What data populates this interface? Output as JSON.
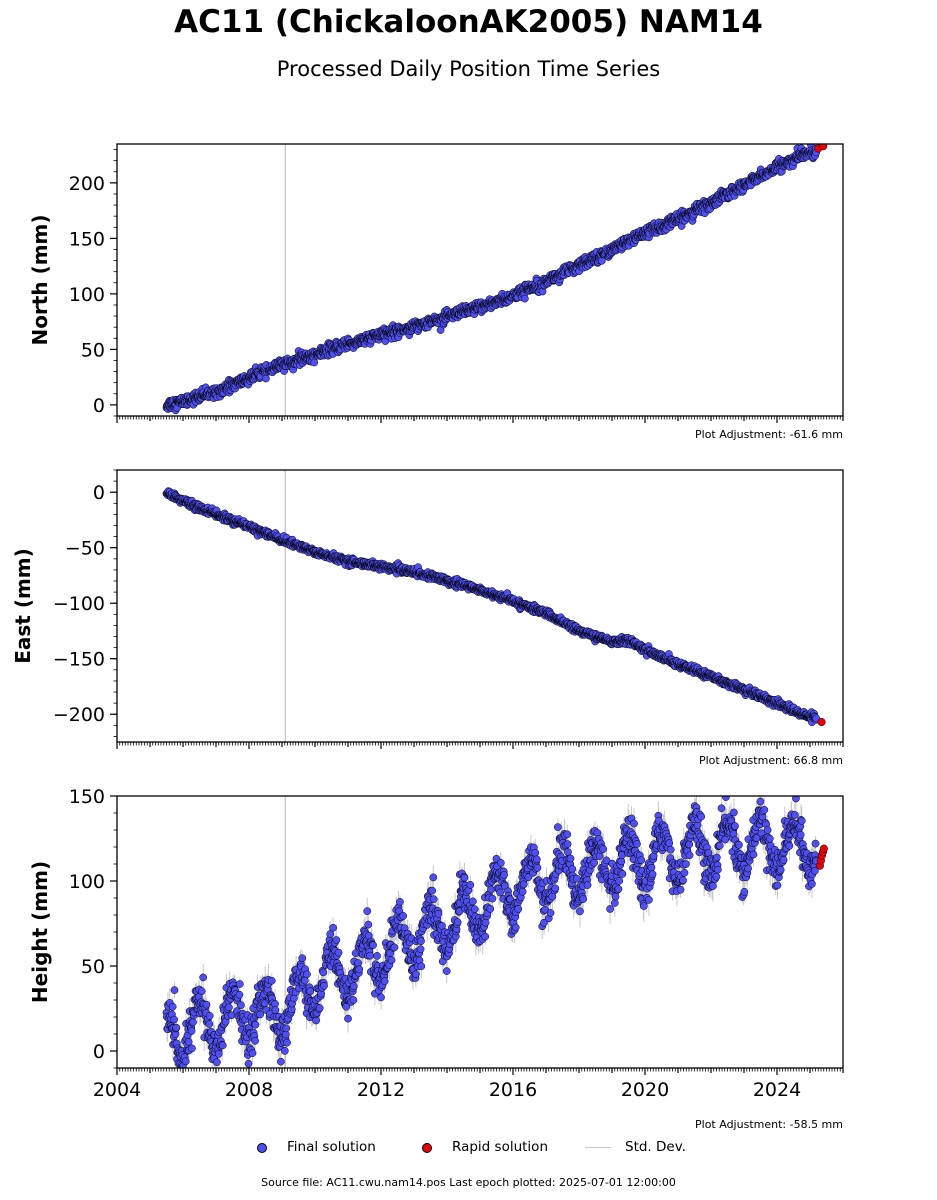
{
  "header": {
    "title": "AC11 (ChickaloonAK2005) NAM14",
    "subtitle": "Processed Daily Position Time Series"
  },
  "footer": {
    "text": "Source file: AC11.cwu.nam14.pos  Last epoch plotted: 2025-07-01 12:00:00"
  },
  "legend": {
    "final": "Final solution",
    "rapid": "Rapid solution",
    "stddev": "Std. Dev."
  },
  "colors": {
    "final": "#4f4ff2",
    "rapid": "#e8000b",
    "stddev": "#c8c8c8",
    "marker_edge": "#000000",
    "event_line": "#cccccc"
  },
  "chart_data": [
    {
      "type": "scatter",
      "ylabel": "North (mm)",
      "adjustment": "Plot Adjustment: -61.6 mm",
      "xlim": [
        2004.0,
        2026.0
      ],
      "ylim": [
        -10,
        235
      ],
      "yticks": [
        0,
        50,
        100,
        150,
        200
      ],
      "xticks": [],
      "event_line_x": 2009.1,
      "final_series": {
        "name": "Final solution",
        "x": [
          2005.5,
          2006.0,
          2007.0,
          2008.0,
          2009.0,
          2010.0,
          2011.0,
          2012.0,
          2013.0,
          2014.0,
          2015.0,
          2016.0,
          2017.0,
          2018.0,
          2019.0,
          2020.0,
          2021.0,
          2022.0,
          2023.0,
          2024.0,
          2025.0
        ],
        "y": [
          0,
          3,
          12,
          24,
          36,
          45,
          55,
          63,
          71,
          79,
          88,
          98,
          112,
          125,
          140,
          155,
          167,
          182,
          198,
          214,
          228
        ]
      },
      "rapid_series": {
        "name": "Rapid solution",
        "x": [
          2025.25,
          2025.4
        ],
        "y": [
          231,
          233
        ]
      },
      "noise": 2.5,
      "sigma": 1.5
    },
    {
      "type": "scatter",
      "ylabel": "East (mm)",
      "adjustment": "Plot Adjustment: 66.8 mm",
      "xlim": [
        2004.0,
        2026.0
      ],
      "ylim": [
        -225,
        20
      ],
      "yticks": [
        0,
        -50,
        -100,
        -150,
        -200
      ],
      "xticks": [],
      "event_line_x": 2009.1,
      "final_series": {
        "name": "Final solution",
        "x": [
          2005.5,
          2006.0,
          2007.0,
          2008.0,
          2009.0,
          2010.0,
          2011.0,
          2012.0,
          2013.0,
          2014.0,
          2015.0,
          2016.0,
          2017.0,
          2018.0,
          2019.0,
          2019.5,
          2020.0,
          2021.0,
          2022.0,
          2023.0,
          2024.0,
          2025.0
        ],
        "y": [
          0,
          -8,
          -20,
          -31,
          -43,
          -54,
          -62,
          -67,
          -72,
          -79,
          -88,
          -98,
          -109,
          -125,
          -135,
          -133,
          -142,
          -155,
          -166,
          -178,
          -190,
          -203
        ]
      },
      "rapid_series": {
        "name": "Rapid solution",
        "x": [
          2025.35
        ],
        "y": [
          -207
        ]
      },
      "noise": 1.5,
      "sigma": 1.0
    },
    {
      "type": "scatter",
      "ylabel": "Height (mm)",
      "adjustment": "Plot Adjustment: -58.5 mm",
      "xlim": [
        2004.0,
        2026.0
      ],
      "ylim": [
        -10,
        150
      ],
      "yticks": [
        0,
        50,
        100,
        150
      ],
      "xticks": [
        "2004",
        "2008",
        "2012",
        "2016",
        "2020",
        "2024"
      ],
      "event_line_x": 2009.1,
      "final_series": {
        "name": "Final solution",
        "x": [
          2005.5,
          2006.0,
          2007.0,
          2008.0,
          2009.0,
          2010.0,
          2011.0,
          2012.0,
          2013.0,
          2014.0,
          2015.0,
          2016.0,
          2017.0,
          2018.0,
          2019.0,
          2020.0,
          2021.0,
          2022.0,
          2023.0,
          2024.0,
          2025.0
        ],
        "y": [
          5,
          14,
          16,
          22,
          22,
          40,
          46,
          57,
          67,
          75,
          85,
          95,
          103,
          106,
          108,
          112,
          117,
          120,
          120,
          122,
          120
        ],
        "seasonal_amplitude": 15
      },
      "rapid_series": {
        "name": "Rapid solution",
        "x": [
          2025.3,
          2025.33,
          2025.36,
          2025.39,
          2025.42
        ],
        "y": [
          109,
          112,
          115,
          117,
          119
        ]
      },
      "noise": 6,
      "sigma": 6
    }
  ]
}
